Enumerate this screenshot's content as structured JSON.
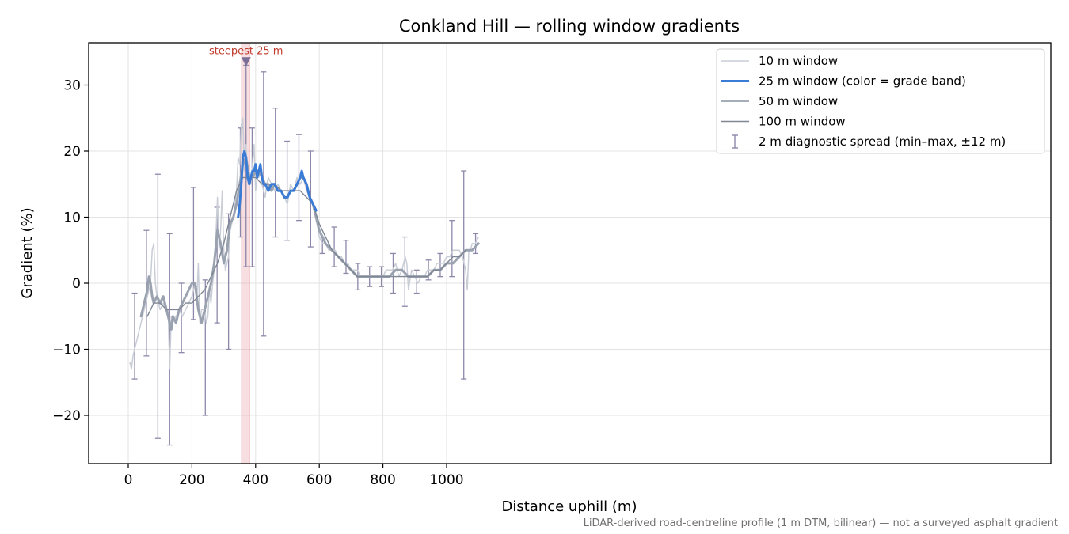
{
  "chart_data": {
    "type": "line",
    "title": "Conkland Hill — rolling window gradients",
    "xlabel": "Distance uphill (m)",
    "ylabel": "Gradient (%)",
    "xlim": [
      -50,
      1160
    ],
    "ylim": [
      -27,
      36.5
    ],
    "xticks": [
      0,
      200,
      400,
      600,
      800,
      1000
    ],
    "yticks": [
      -20,
      -10,
      0,
      10,
      20,
      30
    ],
    "ytick_labels": [
      "−20",
      "−10",
      "0",
      "10",
      "20",
      "30"
    ],
    "grid": true,
    "legend_position": "top-right",
    "footnote": "LiDAR-derived road-centreline profile (1 m DTM, bilinear) — not a surveyed asphalt gradient",
    "highlight": {
      "x_start": 356,
      "x_end": 381,
      "label": "steepest 25 m",
      "marker": [
        370,
        33.5
      ]
    },
    "series": [
      {
        "name": "10 m window",
        "color": "#c8cdd6",
        "x": [
          5,
          10,
          15,
          20,
          25,
          30,
          40,
          50,
          55,
          60,
          65,
          70,
          75,
          80,
          85,
          90,
          95,
          100,
          110,
          120,
          125,
          130,
          135,
          140,
          150,
          160,
          170,
          180,
          190,
          200,
          205,
          210,
          215,
          220,
          225,
          230,
          240,
          245,
          250,
          255,
          260,
          265,
          270,
          275,
          280,
          285,
          290,
          295,
          300,
          305,
          310,
          315,
          320,
          330,
          340,
          345,
          350,
          355,
          360,
          365,
          370,
          375,
          380,
          385,
          390,
          395,
          400,
          405,
          410,
          415,
          420,
          425,
          430,
          435,
          440,
          450,
          460,
          470,
          480,
          490,
          500,
          510,
          520,
          530,
          540,
          550,
          560,
          570,
          580,
          590,
          600,
          610,
          620,
          630,
          640,
          650,
          660,
          670,
          680,
          690,
          700,
          710,
          720,
          730,
          740,
          750,
          760,
          770,
          780,
          790,
          800,
          810,
          820,
          830,
          840,
          850,
          860,
          870,
          875,
          880,
          890,
          900,
          910,
          920,
          930,
          940,
          950,
          960,
          970,
          980,
          990,
          1000,
          1010,
          1020,
          1030,
          1040,
          1050,
          1060,
          1065,
          1070,
          1075,
          1080,
          1090,
          1100
        ],
        "values": [
          -12,
          -13,
          -11,
          -10,
          -9,
          -8,
          -6,
          -4,
          -3,
          -2,
          -1,
          0,
          5,
          6,
          0,
          -2,
          -3,
          -4,
          -3,
          -4,
          -4,
          -13,
          -5,
          -6,
          -5,
          -4,
          -5,
          -4,
          -3,
          -2,
          -1,
          0,
          -3,
          3,
          -6,
          -4,
          -4,
          -6,
          -5,
          -1,
          -3,
          0,
          2,
          7,
          13,
          5,
          8,
          14,
          5,
          2,
          3,
          4,
          8,
          10,
          14,
          19,
          18,
          24,
          25,
          17,
          21,
          16,
          17,
          15,
          18,
          21,
          14,
          16,
          16,
          17,
          15,
          14,
          13,
          15,
          16,
          15,
          14,
          15,
          14,
          13,
          12,
          15,
          14,
          16,
          15,
          16,
          14,
          13,
          12,
          10,
          7,
          6,
          6,
          5,
          5,
          5,
          4,
          4,
          3,
          3,
          2,
          2,
          2,
          1,
          1,
          1,
          1,
          1,
          1,
          1,
          1,
          2,
          2,
          2,
          3,
          1,
          2,
          4,
          3,
          -1,
          2,
          1,
          0,
          1,
          1,
          2,
          2,
          2,
          3,
          3,
          3,
          4,
          4,
          5,
          5,
          5,
          4,
          2,
          -1,
          5,
          5,
          6,
          6,
          7
        ]
      },
      {
        "name": "25 m window (color = grade band)",
        "color": "#3a7bd5",
        "x": [
          345,
          350,
          355,
          360,
          365,
          370,
          375,
          380,
          385,
          390,
          395,
          400,
          405,
          410,
          415,
          420,
          425,
          430,
          440,
          450,
          460,
          470,
          480,
          490,
          500,
          510,
          520,
          530,
          540,
          545,
          550,
          560,
          570,
          580,
          590
        ],
        "values": [
          10,
          12,
          15,
          19,
          20,
          19,
          16,
          15,
          16,
          17,
          17,
          18,
          16,
          17,
          18,
          16,
          15,
          15,
          14,
          15,
          15,
          14,
          14,
          13,
          13,
          14,
          14,
          15,
          16,
          17,
          16,
          15,
          13,
          12,
          11
        ]
      },
      {
        "name": "50 m window",
        "color": "#9aa2b0",
        "x": [
          40,
          50,
          60,
          65,
          70,
          75,
          80,
          90,
          100,
          110,
          120,
          130,
          135,
          140,
          150,
          160,
          170,
          180,
          190,
          200,
          210,
          220,
          230,
          240,
          250,
          260,
          270,
          280,
          290,
          300,
          310,
          320,
          330,
          340,
          350,
          360,
          370,
          380,
          390,
          400,
          410,
          420,
          430,
          440,
          450,
          460,
          470,
          480,
          490,
          500,
          510,
          520,
          530,
          540,
          550,
          560,
          570,
          580,
          590,
          600,
          620,
          640,
          660,
          680,
          700,
          720,
          740,
          760,
          780,
          800,
          820,
          840,
          860,
          880,
          900,
          920,
          940,
          960,
          980,
          1000,
          1020,
          1040,
          1060,
          1080,
          1100
        ],
        "values": [
          -5,
          -3,
          -1,
          1,
          0,
          -2,
          -3,
          -2,
          -3,
          -2,
          -4,
          -6,
          -7,
          -5,
          -6,
          -4,
          -3,
          -2,
          -1,
          0,
          0,
          -4,
          -6,
          -4,
          -2,
          0,
          3,
          8,
          6,
          3,
          5,
          9,
          10,
          12,
          15,
          18,
          19,
          16,
          16,
          17,
          17,
          16,
          15,
          15,
          14,
          15,
          14,
          14,
          13,
          13,
          14,
          14,
          15,
          16,
          16,
          15,
          13,
          12,
          10,
          8,
          6,
          5,
          4,
          3,
          2,
          1,
          1,
          1,
          1,
          1,
          1,
          2,
          2,
          1,
          1,
          1,
          1,
          2,
          2,
          3,
          3,
          4,
          5,
          5,
          6
        ]
      },
      {
        "name": "100 m window",
        "color": "#7f8694",
        "x": [
          60,
          80,
          100,
          120,
          140,
          160,
          180,
          200,
          220,
          240,
          260,
          280,
          300,
          320,
          340,
          360,
          380,
          400,
          420,
          440,
          460,
          480,
          500,
          520,
          540,
          560,
          580,
          600,
          620,
          640,
          660,
          680,
          700,
          720,
          740,
          760,
          780,
          800,
          820,
          840,
          860,
          880,
          900,
          920,
          940,
          960,
          980,
          1000,
          1020,
          1040,
          1060
        ],
        "values": [
          -5,
          -3,
          -3,
          -4,
          -4,
          -4,
          -3,
          -3,
          -2,
          -1,
          1,
          3,
          6,
          10,
          14,
          16,
          16,
          16,
          15,
          15,
          15,
          14,
          14,
          14,
          14,
          13,
          12,
          9,
          7,
          5,
          4,
          3,
          2,
          1,
          1,
          1,
          1,
          1,
          1,
          1,
          1,
          1,
          1,
          1,
          1,
          2,
          2,
          3,
          4,
          4,
          5
        ]
      }
    ],
    "error_bars": {
      "name": "2 m diagnostic spread (min–max, ±12 m)",
      "color": "#8d87aa",
      "points": [
        {
          "x": 20,
          "low": -14.5,
          "high": -1.5
        },
        {
          "x": 57,
          "low": -11,
          "high": 8
        },
        {
          "x": 93,
          "low": -23.5,
          "high": 16.5
        },
        {
          "x": 130,
          "low": -24.5,
          "high": 7.5
        },
        {
          "x": 167,
          "low": -10.5,
          "high": 0
        },
        {
          "x": 205,
          "low": -5.5,
          "high": 14.5
        },
        {
          "x": 242,
          "low": -20,
          "high": 0.5
        },
        {
          "x": 279,
          "low": -6,
          "high": 11.5
        },
        {
          "x": 315,
          "low": -10,
          "high": 10.5
        },
        {
          "x": 352,
          "low": 7,
          "high": 23.5
        },
        {
          "x": 370,
          "low": 2.5,
          "high": 33
        },
        {
          "x": 389,
          "low": 2.5,
          "high": 23.5
        },
        {
          "x": 425,
          "low": -8,
          "high": 32
        },
        {
          "x": 462,
          "low": 7,
          "high": 26.5
        },
        {
          "x": 499,
          "low": 6.5,
          "high": 21.5
        },
        {
          "x": 536,
          "low": 9.5,
          "high": 22.5
        },
        {
          "x": 573,
          "low": 5.5,
          "high": 20
        },
        {
          "x": 610,
          "low": 4.5,
          "high": 7
        },
        {
          "x": 647,
          "low": 2.5,
          "high": 8.5
        },
        {
          "x": 684,
          "low": 1.5,
          "high": 6.5
        },
        {
          "x": 721,
          "low": -1,
          "high": 3
        },
        {
          "x": 758,
          "low": -0.5,
          "high": 2.5
        },
        {
          "x": 795,
          "low": -0.5,
          "high": 2.5
        },
        {
          "x": 832,
          "low": -1.5,
          "high": 4.5
        },
        {
          "x": 869,
          "low": -3.5,
          "high": 7
        },
        {
          "x": 906,
          "low": -1.5,
          "high": 2
        },
        {
          "x": 943,
          "low": 0.5,
          "high": 3.5
        },
        {
          "x": 980,
          "low": 1,
          "high": 4.5
        },
        {
          "x": 1017,
          "low": 1,
          "high": 9.5
        },
        {
          "x": 1054,
          "low": -14.5,
          "high": 17
        },
        {
          "x": 1091,
          "low": 4.5,
          "high": 7.5
        }
      ]
    }
  }
}
